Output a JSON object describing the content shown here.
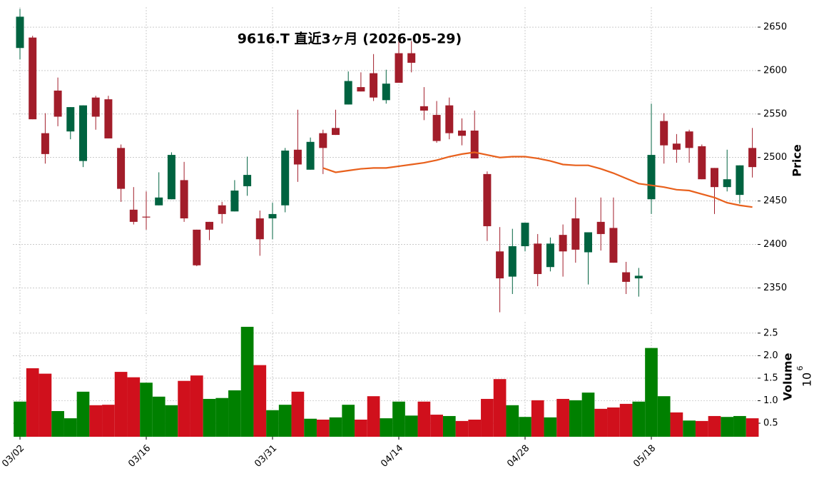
{
  "chart_data": [
    {
      "type": "candlestick",
      "title": "9616.T  直近3ヶ月 (2026-05-29)",
      "y_label": "Price",
      "up_color": "#006340",
      "down_color": "#a21d2a",
      "grid": true,
      "ylim": [
        2320,
        2673
      ],
      "yticks": [
        2350,
        2400,
        2450,
        2500,
        2550,
        2600,
        2650
      ],
      "open": [
        2626,
        2638,
        2528,
        2577,
        2530,
        2496,
        2569,
        2567,
        2511,
        2440,
        2432,
        2445,
        2452,
        2474,
        2417,
        2426,
        2445,
        2438,
        2467,
        2430,
        2430,
        2445,
        2509,
        2486,
        2528,
        2534,
        2561,
        2581,
        2597,
        2566,
        2620,
        2620,
        2559,
        2549,
        2560,
        2531,
        2531,
        2481,
        2392,
        2363,
        2398,
        2401,
        2374,
        2411,
        2430,
        2391,
        2426,
        2419,
        2368,
        2361,
        2452,
        2542,
        2516,
        2530,
        2513,
        2488,
        2466,
        2457,
        2511
      ],
      "high": [
        2671,
        2640,
        2551,
        2592,
        2558,
        2560,
        2571,
        2571,
        2515,
        2466,
        2461,
        2483,
        2506,
        2495,
        2417,
        2426,
        2449,
        2474,
        2501,
        2439,
        2448,
        2511,
        2555,
        2523,
        2532,
        2555,
        2599,
        2598,
        2619,
        2601,
        2636,
        2634,
        2581,
        2565,
        2569,
        2545,
        2554,
        2484,
        2420,
        2418,
        2425,
        2412,
        2408,
        2423,
        2454,
        2414,
        2454,
        2454,
        2380,
        2373,
        2562,
        2551,
        2527,
        2532,
        2515,
        2488,
        2509,
        2491,
        2534
      ],
      "low": [
        2613,
        2544,
        2493,
        2536,
        2521,
        2489,
        2532,
        2522,
        2449,
        2423,
        2417,
        2445,
        2452,
        2426,
        2375,
        2405,
        2424,
        2438,
        2456,
        2387,
        2406,
        2437,
        2472,
        2486,
        2481,
        2526,
        2561,
        2576,
        2565,
        2562,
        2586,
        2598,
        2543,
        2517,
        2521,
        2514,
        2499,
        2404,
        2322,
        2343,
        2392,
        2352,
        2369,
        2363,
        2379,
        2354,
        2393,
        2379,
        2343,
        2340,
        2435,
        2493,
        2494,
        2494,
        2475,
        2435,
        2461,
        2447,
        2477
      ],
      "close": [
        2662,
        2544,
        2504,
        2547,
        2558,
        2560,
        2547,
        2522,
        2464,
        2426,
        2431,
        2454,
        2503,
        2430,
        2376,
        2417,
        2435,
        2462,
        2480,
        2406,
        2435,
        2508,
        2492,
        2518,
        2511,
        2526,
        2588,
        2576,
        2569,
        2585,
        2586,
        2609,
        2554,
        2519,
        2528,
        2525,
        2499,
        2421,
        2361,
        2398,
        2425,
        2366,
        2401,
        2392,
        2394,
        2414,
        2412,
        2379,
        2357,
        2364,
        2503,
        2514,
        2509,
        2511,
        2475,
        2466,
        2475,
        2491,
        2489
      ],
      "moving_average": {
        "color": "#e8601c",
        "values": [
          null,
          null,
          null,
          null,
          null,
          null,
          null,
          null,
          null,
          null,
          null,
          null,
          null,
          null,
          null,
          null,
          null,
          null,
          null,
          null,
          null,
          null,
          null,
          null,
          2488,
          2483,
          2485,
          2487,
          2488,
          2488,
          2490,
          2492,
          2494,
          2497,
          2501,
          2504,
          2506,
          2503,
          2500,
          2501,
          2501,
          2499,
          2496,
          2492,
          2491,
          2491,
          2487,
          2482,
          2476,
          2470,
          2468,
          2466,
          2463,
          2462,
          2458,
          2454,
          2448,
          2445,
          2443
        ]
      }
    },
    {
      "type": "bar",
      "y_label": "Volume",
      "scale_base": "10",
      "scale_exponent": "6",
      "up_color": "#008000",
      "down_color": "#d0101c",
      "grid": true,
      "categories": [
        "03/02",
        null,
        null,
        null,
        null,
        null,
        null,
        null,
        null,
        null,
        "03/16",
        null,
        null,
        null,
        null,
        null,
        null,
        null,
        null,
        null,
        "03/31",
        null,
        null,
        null,
        null,
        null,
        null,
        null,
        null,
        null,
        "04/14",
        null,
        null,
        null,
        null,
        null,
        null,
        null,
        null,
        null,
        "04/28",
        null,
        null,
        null,
        null,
        null,
        null,
        null,
        null,
        null,
        "05/18",
        null,
        null,
        null,
        null,
        null,
        null,
        null,
        null
      ],
      "ylim": [
        0.2,
        2.75
      ],
      "yticks": [
        0.5,
        {
          "value": 1,
          "label": "1.0"
        },
        1.5,
        {
          "value": 2,
          "label": "2.0"
        },
        2.5
      ],
      "values": [
        0.98,
        1.72,
        1.6,
        0.77,
        0.61,
        1.2,
        0.9,
        0.91,
        1.64,
        1.52,
        1.4,
        1.09,
        0.9,
        1.44,
        1.56,
        1.04,
        1.06,
        1.23,
        2.64,
        1.79,
        0.79,
        0.91,
        1.2,
        0.6,
        0.58,
        0.63,
        0.91,
        0.58,
        1.1,
        0.61,
        0.98,
        0.67,
        0.98,
        0.69,
        0.66,
        0.55,
        0.58,
        1.04,
        1.48,
        0.9,
        0.64,
        1.01,
        0.63,
        1.04,
        1.01,
        1.18,
        0.82,
        0.85,
        0.93,
        0.98,
        2.17,
        1.1,
        0.74,
        0.56,
        0.55,
        0.66,
        0.64,
        0.66,
        0.61
      ]
    }
  ]
}
